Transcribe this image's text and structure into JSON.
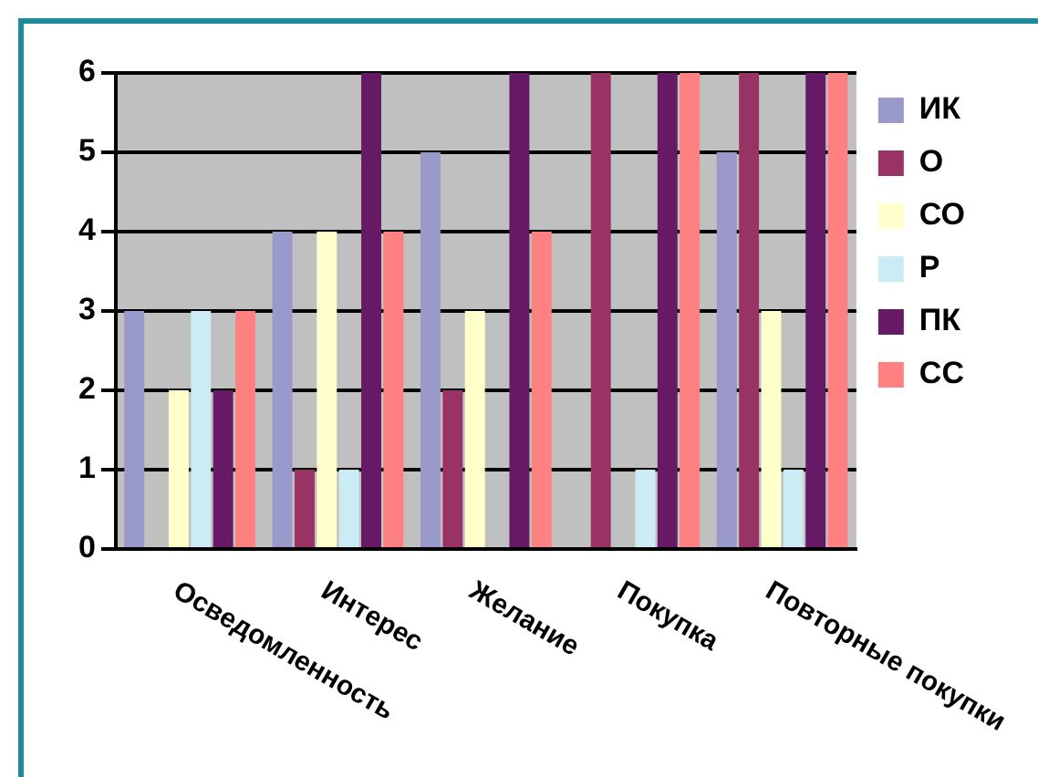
{
  "chart_data": {
    "type": "bar",
    "categories": [
      "Осведомленность",
      "Интерес",
      "Желание",
      "Покупка",
      "Повторные покупки"
    ],
    "series": [
      {
        "name": "ИК",
        "color": "#9999cc",
        "values": [
          3,
          4,
          5,
          0,
          5
        ]
      },
      {
        "name": "О",
        "color": "#993366",
        "values": [
          0,
          1,
          2,
          6,
          6
        ]
      },
      {
        "name": "СО",
        "color": "#ffffcc",
        "values": [
          2,
          4,
          3,
          0,
          3
        ]
      },
      {
        "name": "Р",
        "color": "#ccecf5",
        "values": [
          3,
          1,
          0,
          1,
          1
        ]
      },
      {
        "name": "ПК",
        "color": "#661a66",
        "values": [
          2,
          6,
          6,
          6,
          6
        ]
      },
      {
        "name": "СС",
        "color": "#ff8080",
        "values": [
          3,
          4,
          4,
          6,
          6
        ]
      }
    ],
    "ylim": [
      0,
      6
    ],
    "yticks": [
      0,
      1,
      2,
      3,
      4,
      5,
      6
    ],
    "grid": "y",
    "legend": "right"
  }
}
